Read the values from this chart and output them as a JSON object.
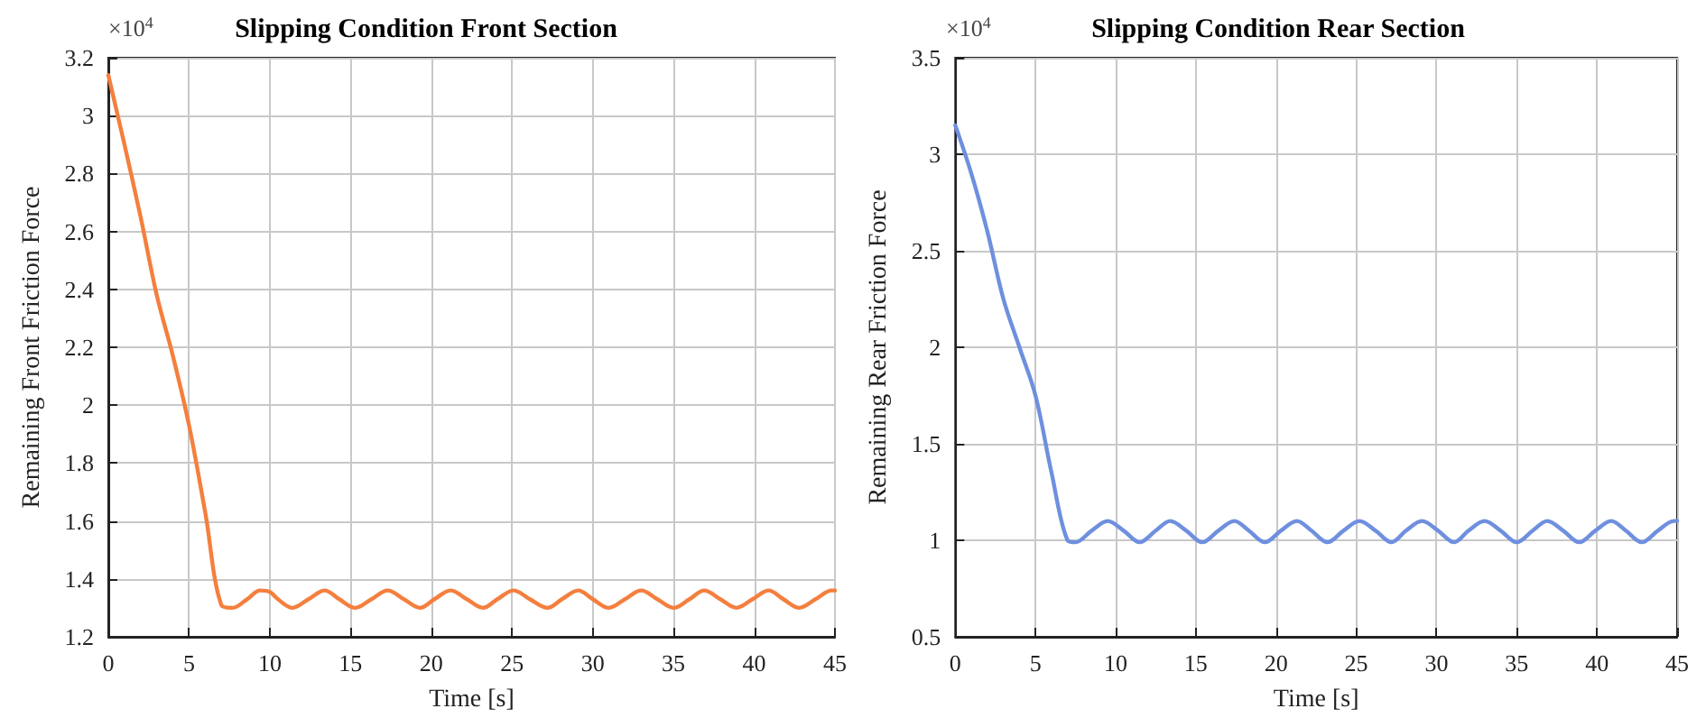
{
  "chart_data": [
    {
      "type": "line",
      "title": "Slipping Condition Front Section",
      "xlabel": "Time [s]",
      "ylabel": "Remaining Front Friction Force",
      "annotations": [
        "×10$^{4}$"
      ],
      "grid": true,
      "marker": "none",
      "line_style": "solid",
      "xlim": [
        0,
        45
      ],
      "xticks": [
        0,
        5,
        10,
        15,
        20,
        25,
        30,
        35,
        40,
        45
      ],
      "ylim": [
        1.2,
        3.2
      ],
      "yticks": [
        1.2,
        1.4,
        1.6,
        1.8,
        2,
        2.2,
        2.4,
        2.6,
        2.8,
        3,
        3.2
      ],
      "series": [
        {
          "color": "#f47f3e",
          "x": [
            0,
            1,
            2,
            3,
            4,
            5,
            6,
            7,
            7.7,
            8.6,
            9.4,
            10,
            10.5,
            11.4,
            12.4,
            13.4,
            14.3,
            15.3,
            16.3,
            17.3,
            18.3,
            19.3,
            20.2,
            21.2,
            22.2,
            23.2,
            24.1,
            25.1,
            26.1,
            27.2,
            28.1,
            29.1,
            30,
            31,
            32,
            33,
            34,
            35,
            36,
            36.9,
            37.9,
            38.9,
            39.9,
            40.9,
            41.8,
            42.8,
            43.8,
            44.8,
            45
          ],
          "values": [
            3.14,
            2.9,
            2.65,
            2.38,
            2.17,
            1.93,
            1.63,
            1.31,
            1.3,
            1.33,
            1.36,
            1.355,
            1.33,
            1.3,
            1.33,
            1.36,
            1.33,
            1.3,
            1.33,
            1.36,
            1.33,
            1.3,
            1.33,
            1.36,
            1.33,
            1.3,
            1.33,
            1.36,
            1.33,
            1.3,
            1.33,
            1.36,
            1.33,
            1.3,
            1.33,
            1.36,
            1.33,
            1.3,
            1.33,
            1.36,
            1.33,
            1.3,
            1.33,
            1.36,
            1.33,
            1.3,
            1.33,
            1.36,
            1.36
          ]
        }
      ]
    },
    {
      "type": "line",
      "title": "Slipping Condition Rear Section",
      "xlabel": "Time [s]",
      "ylabel": "Remaining Rear Friction Force",
      "annotations": [
        "×10$^{4}$"
      ],
      "grid": true,
      "marker": "none",
      "line_style": "solid",
      "xlim": [
        0,
        45
      ],
      "xticks": [
        0,
        5,
        10,
        15,
        20,
        25,
        30,
        35,
        40,
        45
      ],
      "ylim": [
        0.5,
        3.5
      ],
      "yticks": [
        0.5,
        1,
        1.5,
        2,
        2.5,
        3,
        3.5
      ],
      "series": [
        {
          "color": "#6f8fdf",
          "x": [
            0,
            1,
            2,
            3,
            4,
            5,
            6,
            7,
            7.5,
            8.5,
            9.5,
            10.5,
            11.5,
            12.5,
            13.4,
            14.4,
            15.4,
            16.4,
            17.4,
            18.3,
            19.3,
            20.3,
            21.3,
            22.2,
            23.2,
            24.2,
            25.2,
            26.2,
            27.2,
            28.1,
            29.1,
            30.1,
            31.1,
            32,
            33,
            34,
            35,
            36,
            36.9,
            37.9,
            38.9,
            39.9,
            40.9,
            41.8,
            42.8,
            43.8,
            44.8,
            45
          ],
          "values": [
            3.15,
            2.9,
            2.6,
            2.25,
            2,
            1.75,
            1.35,
            1,
            0.99,
            1.05,
            1.1,
            1.05,
            0.99,
            1.05,
            1.1,
            1.05,
            0.99,
            1.05,
            1.1,
            1.05,
            0.99,
            1.05,
            1.1,
            1.05,
            0.99,
            1.05,
            1.1,
            1.05,
            0.99,
            1.05,
            1.1,
            1.05,
            0.99,
            1.05,
            1.1,
            1.05,
            0.99,
            1.05,
            1.1,
            1.05,
            0.99,
            1.05,
            1.1,
            1.05,
            0.99,
            1.05,
            1.1,
            1.1
          ]
        }
      ]
    }
  ]
}
